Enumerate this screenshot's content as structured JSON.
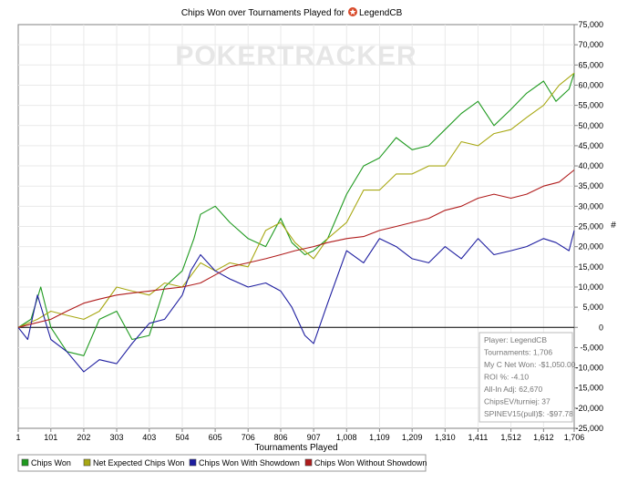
{
  "chart_data": {
    "type": "line",
    "title": "Chips Won over Tournaments Played for",
    "player_name": "LegendCB",
    "watermark": "POKERTRACKER",
    "xlabel": "Tournaments Played",
    "ylabel": "#",
    "xlim": [
      1,
      1706
    ],
    "ylim": [
      -25000,
      75000
    ],
    "x_ticks": [
      "1",
      "101",
      "202",
      "303",
      "403",
      "504",
      "605",
      "706",
      "806",
      "907",
      "1,008",
      "1,109",
      "1,209",
      "1,310",
      "1,411",
      "1,512",
      "1,612",
      "1,706"
    ],
    "x_tick_values": [
      1,
      101,
      202,
      303,
      403,
      504,
      605,
      706,
      806,
      907,
      1008,
      1109,
      1209,
      1310,
      1411,
      1512,
      1612,
      1706
    ],
    "y_ticks": [
      "75,000",
      "70,000",
      "65,000",
      "60,000",
      "55,000",
      "50,000",
      "45,000",
      "40,000",
      "35,000",
      "30,000",
      "25,000",
      "20,000",
      "15,000",
      "10,000",
      "5,000",
      "0",
      "-5,000",
      "-10,000",
      "-15,000",
      "-20,000",
      "-25,000"
    ],
    "y_tick_values": [
      75000,
      70000,
      65000,
      60000,
      55000,
      50000,
      45000,
      40000,
      35000,
      30000,
      25000,
      20000,
      15000,
      10000,
      5000,
      0,
      -5000,
      -10000,
      -15000,
      -20000,
      -25000
    ],
    "grid": true,
    "legend_position": "bottom",
    "series": [
      {
        "name": "Chips Won",
        "color": "#1f9a1f",
        "x": [
          1,
          40,
          70,
          101,
          150,
          202,
          250,
          303,
          350,
          403,
          450,
          504,
          540,
          560,
          605,
          650,
          706,
          760,
          806,
          840,
          880,
          907,
          950,
          1008,
          1060,
          1109,
          1160,
          1209,
          1260,
          1310,
          1360,
          1411,
          1460,
          1512,
          1560,
          1612,
          1650,
          1690,
          1706
        ],
        "y": [
          0,
          2000,
          10000,
          0,
          -6000,
          -7000,
          2000,
          4000,
          -3000,
          -2000,
          10000,
          14000,
          22000,
          28000,
          30000,
          26000,
          22000,
          20000,
          27000,
          21000,
          18000,
          19000,
          22000,
          33000,
          40000,
          42000,
          47000,
          44000,
          45000,
          49000,
          53000,
          56000,
          50000,
          54000,
          58000,
          61000,
          56000,
          59000,
          63000
        ]
      },
      {
        "name": "Net Expected Chips Won",
        "color": "#a8a813",
        "x": [
          1,
          60,
          101,
          150,
          202,
          250,
          303,
          350,
          403,
          450,
          504,
          560,
          605,
          650,
          706,
          760,
          806,
          850,
          907,
          950,
          1008,
          1060,
          1109,
          1160,
          1209,
          1260,
          1310,
          1360,
          1411,
          1460,
          1512,
          1560,
          1612,
          1660,
          1706
        ],
        "y": [
          0,
          2000,
          4000,
          3000,
          2000,
          4000,
          10000,
          9000,
          8000,
          11000,
          10000,
          16000,
          14000,
          16000,
          15000,
          24000,
          26000,
          21000,
          17000,
          22000,
          26000,
          34000,
          34000,
          38000,
          38000,
          40000,
          40000,
          46000,
          45000,
          48000,
          49000,
          52000,
          55000,
          60000,
          63000
        ]
      },
      {
        "name": "Chips Won With Showdown",
        "color": "#1e1ea0",
        "x": [
          1,
          30,
          60,
          101,
          150,
          202,
          250,
          303,
          350,
          403,
          450,
          504,
          530,
          560,
          605,
          650,
          706,
          760,
          806,
          840,
          880,
          907,
          950,
          1008,
          1060,
          1109,
          1160,
          1209,
          1260,
          1310,
          1360,
          1411,
          1460,
          1512,
          1560,
          1612,
          1650,
          1690,
          1706
        ],
        "y": [
          0,
          -3000,
          8000,
          -3000,
          -6000,
          -11000,
          -8000,
          -9000,
          -4000,
          1000,
          2000,
          8000,
          14000,
          18000,
          14000,
          12000,
          10000,
          11000,
          9000,
          5000,
          -2000,
          -4000,
          6000,
          19000,
          16000,
          22000,
          20000,
          17000,
          16000,
          20000,
          17000,
          22000,
          18000,
          19000,
          20000,
          22000,
          21000,
          19000,
          24000
        ]
      },
      {
        "name": "Chips Won Without Showdown",
        "color": "#b01c1c",
        "x": [
          1,
          50,
          101,
          150,
          202,
          250,
          303,
          350,
          403,
          450,
          504,
          560,
          605,
          650,
          706,
          760,
          806,
          850,
          907,
          950,
          1008,
          1060,
          1109,
          1160,
          1209,
          1260,
          1310,
          1360,
          1411,
          1460,
          1512,
          1560,
          1612,
          1660,
          1706
        ],
        "y": [
          0,
          1000,
          2000,
          4000,
          6000,
          7000,
          8000,
          8500,
          9000,
          9500,
          10000,
          11000,
          13000,
          15000,
          16000,
          17000,
          18000,
          19000,
          20000,
          21000,
          22000,
          22500,
          24000,
          25000,
          26000,
          27000,
          29000,
          30000,
          32000,
          33000,
          32000,
          33000,
          35000,
          36000,
          39000
        ]
      }
    ]
  },
  "stats_box": [
    "Player: LegendCB",
    "Tournaments: 1,706",
    "My C Net Won: -$1,050.00",
    "ROI %: -4.10",
    "All-In Adj: 62,670",
    "ChipsEV/turniej: 37",
    "SPINEV15(pull)$: -$97.78"
  ],
  "colors": {
    "brand_icon": "#d84a2a",
    "watermark": "#e6e6e6",
    "zero_line": "#000000"
  }
}
